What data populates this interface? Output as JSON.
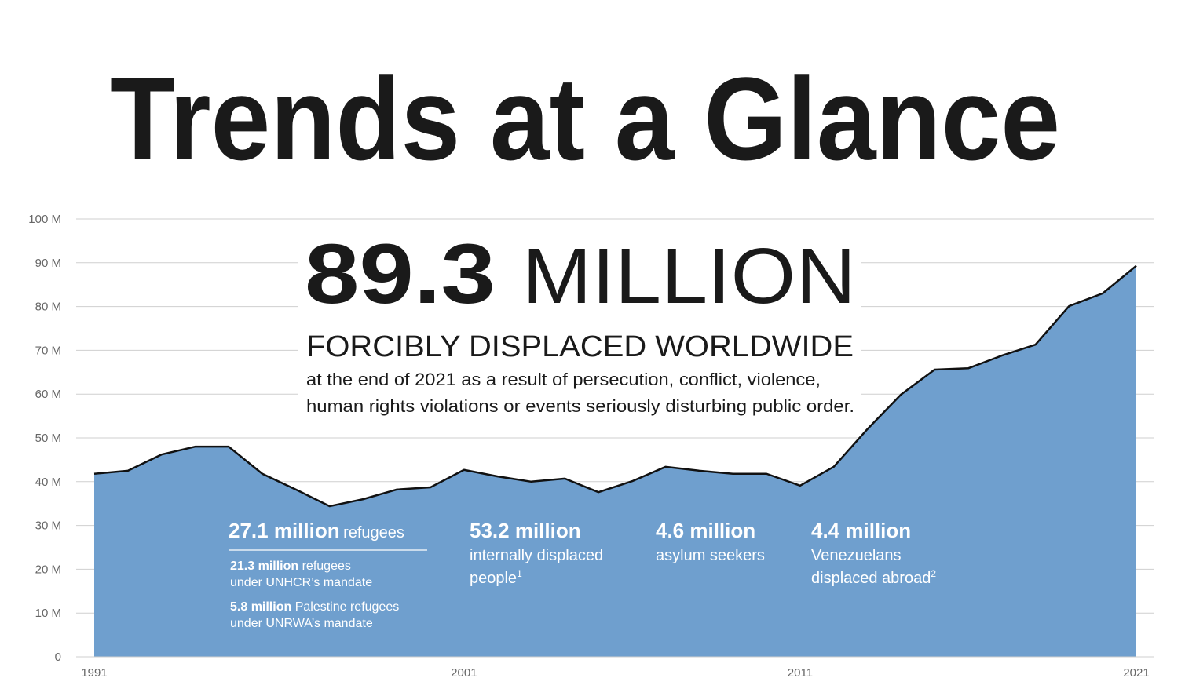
{
  "chart_data": {
    "type": "area",
    "title": "Trends at a Glance",
    "headline": {
      "number": "89.3",
      "unit": "MILLION"
    },
    "subtitle": "FORCIBLY DISPLACED WORLDWIDE",
    "description": [
      "at the end of 2021 as a result of persecution, conflict, violence,",
      "human rights violations or events seriously disturbing public order."
    ],
    "categories": [
      "1991",
      null,
      null,
      null,
      null,
      null,
      null,
      null,
      null,
      null,
      null,
      "2001",
      null,
      null,
      null,
      null,
      null,
      null,
      null,
      null,
      null,
      "2011",
      null,
      null,
      null,
      null,
      null,
      null,
      null,
      null,
      null,
      "2021"
    ],
    "values": [
      41.8,
      42.5,
      46.2,
      48.0,
      48.0,
      41.8,
      38.2,
      34.4,
      36.0,
      38.2,
      38.7,
      42.7,
      41.2,
      40.0,
      40.7,
      37.6,
      40.1,
      43.4,
      42.5,
      41.8,
      41.8,
      39.1,
      43.4,
      52.0,
      59.9,
      65.6,
      65.9,
      68.8,
      71.3,
      80.1,
      83.0,
      89.3
    ],
    "color": "#6f9fce",
    "line_color": "#111111",
    "ylim": [
      0,
      100
    ],
    "yticks": [
      0,
      {
        "value": 10,
        "label": "10 M"
      },
      {
        "value": 20,
        "label": "20 M"
      },
      {
        "value": 30,
        "label": "30 M"
      },
      {
        "value": 40,
        "label": "40 M"
      },
      {
        "value": 50,
        "label": "50 M"
      },
      {
        "value": 60,
        "label": "60 M"
      },
      {
        "value": 70,
        "label": "70 M"
      },
      {
        "value": 80,
        "label": "80 M"
      },
      {
        "value": 90,
        "label": "90 M"
      },
      {
        "value": 100,
        "label": "100 M"
      }
    ],
    "grid": true,
    "annotations": [
      {
        "value": "27.1 million",
        "label": "refugees",
        "details": [
          {
            "value": "21.3 million",
            "label": "refugees",
            "line2": "under UNHCR’s mandate"
          },
          {
            "value": "5.8 million",
            "label": "Palestine refugees",
            "line2": "under UNRWA’s mandate"
          }
        ]
      },
      {
        "value": "53.2 million",
        "lines": [
          "internally displaced",
          "people"
        ],
        "note": "1"
      },
      {
        "value": "4.6 million",
        "lines": [
          "asylum seekers"
        ]
      },
      {
        "value": "4.4 million",
        "lines": [
          "Venezuelans",
          "displaced abroad"
        ],
        "note": "2"
      }
    ]
  }
}
